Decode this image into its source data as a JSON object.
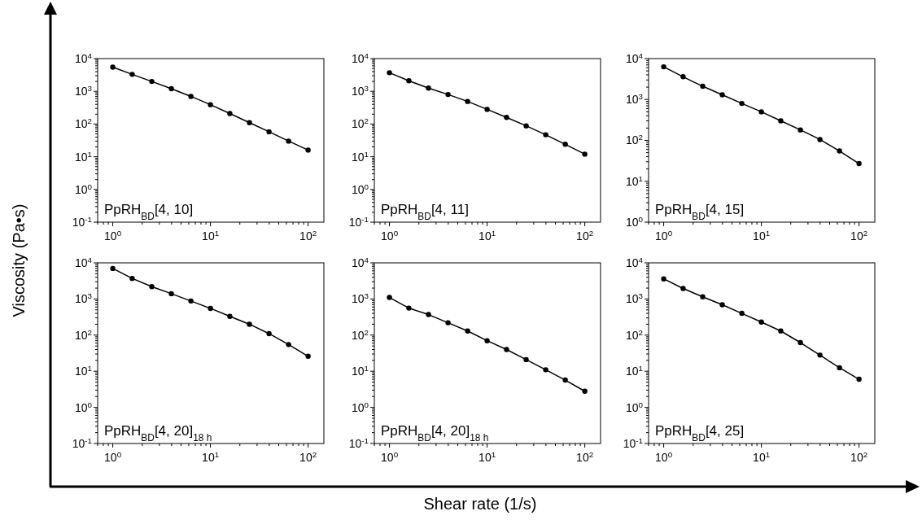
{
  "chart_data": [
    {
      "type": "line",
      "title": "PpRH$_{BD}$[4, 10]",
      "ylabel": "Viscosity (Pa•s)",
      "log": "xy",
      "marker": "circle",
      "x": [
        1,
        1.58,
        2.51,
        3.98,
        6.31,
        10,
        15.8,
        25.1,
        39.8,
        63.1,
        100
      ],
      "xlim": [
        0.7,
        145
      ],
      "ylim": [
        0.1,
        10000
      ],
      "xticks": [
        {
          "value": 1,
          "label": "10$^{0}$"
        },
        {
          "value": 10,
          "label": "10$^{1}$"
        },
        {
          "value": 100,
          "label": "10$^{2}$"
        }
      ],
      "yticks": [
        {
          "value": 0.1,
          "label": "10$^{-1}$"
        },
        {
          "value": 1,
          "label": "10$^{0}$"
        },
        {
          "value": 10,
          "label": "10$^{1}$"
        },
        {
          "value": 100,
          "label": "10$^{2}$"
        },
        {
          "value": 1000,
          "label": "10$^{3}$"
        },
        {
          "value": 10000,
          "label": "10$^{4}$"
        }
      ],
      "series": [
        {
          "color": "#000000",
          "values": [
            5500,
            3300,
            2000,
            1200,
            700,
            390,
            210,
            110,
            58,
            30,
            16
          ]
        }
      ]
    },
    {
      "type": "line",
      "title": "PpRH$_{BD}$[4, 11]",
      "log": "xy",
      "marker": "circle",
      "x": [
        1,
        1.58,
        2.51,
        3.98,
        6.31,
        10,
        15.8,
        25.1,
        39.8,
        63.1,
        100
      ],
      "xlim": [
        0.7,
        145
      ],
      "ylim": [
        0.1,
        10000
      ],
      "xticks": [
        {
          "value": 1,
          "label": "10$^{0}$"
        },
        {
          "value": 10,
          "label": "10$^{1}$"
        },
        {
          "value": 100,
          "label": "10$^{2}$"
        }
      ],
      "yticks": [
        {
          "value": 0.1,
          "label": "10$^{-1}$"
        },
        {
          "value": 1,
          "label": "10$^{0}$"
        },
        {
          "value": 10,
          "label": "10$^{1}$"
        },
        {
          "value": 100,
          "label": "10$^{2}$"
        },
        {
          "value": 1000,
          "label": "10$^{3}$"
        },
        {
          "value": 10000,
          "label": "10$^{4}$"
        }
      ],
      "series": [
        {
          "color": "#000000",
          "values": [
            3700,
            2100,
            1250,
            800,
            490,
            280,
            160,
            88,
            47,
            24,
            12
          ]
        }
      ]
    },
    {
      "type": "line",
      "title": "PpRH$_{BD}$[4, 15]",
      "log": "xy",
      "marker": "circle",
      "x": [
        1,
        1.58,
        2.51,
        3.98,
        6.31,
        10,
        15.8,
        25.1,
        39.8,
        63.1,
        100
      ],
      "xlim": [
        0.7,
        145
      ],
      "ylim": [
        1,
        10000
      ],
      "xticks": [
        {
          "value": 1,
          "label": "10$^{0}$"
        },
        {
          "value": 10,
          "label": "10$^{1}$"
        },
        {
          "value": 100,
          "label": "10$^{2}$"
        }
      ],
      "yticks": [
        {
          "value": 1,
          "label": "10$^{0}$"
        },
        {
          "value": 10,
          "label": "10$^{1}$"
        },
        {
          "value": 100,
          "label": "10$^{2}$"
        },
        {
          "value": 1000,
          "label": "10$^{3}$"
        },
        {
          "value": 10000,
          "label": "10$^{4}$"
        }
      ],
      "series": [
        {
          "color": "#000000",
          "values": [
            6300,
            3600,
            2100,
            1300,
            800,
            500,
            300,
            180,
            105,
            55,
            27
          ]
        }
      ]
    },
    {
      "type": "line",
      "title": "PpRH$_{BD}$[4, 20]$_{18 h}$",
      "log": "xy",
      "marker": "circle",
      "x": [
        1,
        1.58,
        2.51,
        3.98,
        6.31,
        10,
        15.8,
        25.1,
        39.8,
        63.1,
        100
      ],
      "xlim": [
        0.7,
        145
      ],
      "ylim": [
        0.1,
        10000
      ],
      "xticks": [
        {
          "value": 1,
          "label": "10$^{0}$"
        },
        {
          "value": 10,
          "label": "10$^{1}$"
        },
        {
          "value": 100,
          "label": "10$^{2}$"
        }
      ],
      "yticks": [
        {
          "value": 0.1,
          "label": "10$^{-1}$"
        },
        {
          "value": 1,
          "label": "10$^{0}$"
        },
        {
          "value": 10,
          "label": "10$^{1}$"
        },
        {
          "value": 100,
          "label": "10$^{2}$"
        },
        {
          "value": 1000,
          "label": "10$^{3}$"
        },
        {
          "value": 10000,
          "label": "10$^{4}$"
        }
      ],
      "series": [
        {
          "color": "#000000",
          "values": [
            7000,
            3700,
            2200,
            1400,
            880,
            550,
            330,
            200,
            110,
            55,
            26
          ]
        }
      ]
    },
    {
      "type": "line",
      "title": "PpRH$_{BD}$[4, 20]$_{18 h}$",
      "xlabel": "Shear rate (1/s)",
      "log": "xy",
      "marker": "circle",
      "x": [
        1,
        1.58,
        2.51,
        3.98,
        6.31,
        10,
        15.8,
        25.1,
        39.8,
        63.1,
        100
      ],
      "xlim": [
        0.7,
        145
      ],
      "ylim": [
        0.1,
        10000
      ],
      "xticks": [
        {
          "value": 1,
          "label": "10$^{0}$"
        },
        {
          "value": 10,
          "label": "10$^{1}$"
        },
        {
          "value": 100,
          "label": "10$^{2}$"
        }
      ],
      "yticks": [
        {
          "value": 0.1,
          "label": "10$^{-1}$"
        },
        {
          "value": 1,
          "label": "10$^{0}$"
        },
        {
          "value": 10,
          "label": "10$^{1}$"
        },
        {
          "value": 100,
          "label": "10$^{2}$"
        },
        {
          "value": 1000,
          "label": "10$^{3}$"
        },
        {
          "value": 10000,
          "label": "10$^{4}$"
        }
      ],
      "series": [
        {
          "color": "#000000",
          "values": [
            1100,
            560,
            370,
            220,
            130,
            70,
            40,
            21,
            11,
            5.7,
            2.8
          ]
        }
      ]
    },
    {
      "type": "line",
      "title": "PpRH$_{BD}$[4, 25]",
      "log": "xy",
      "marker": "circle",
      "x": [
        1,
        1.58,
        2.51,
        3.98,
        6.31,
        10,
        15.8,
        25.1,
        39.8,
        63.1,
        100
      ],
      "xlim": [
        0.7,
        145
      ],
      "ylim": [
        0.1,
        10000
      ],
      "xticks": [
        {
          "value": 1,
          "label": "10$^{0}$"
        },
        {
          "value": 10,
          "label": "10$^{1}$"
        },
        {
          "value": 100,
          "label": "10$^{2}$"
        }
      ],
      "yticks": [
        {
          "value": 0.1,
          "label": "10$^{-1}$"
        },
        {
          "value": 1,
          "label": "10$^{0}$"
        },
        {
          "value": 10,
          "label": "10$^{1}$"
        },
        {
          "value": 100,
          "label": "10$^{2}$"
        },
        {
          "value": 1000,
          "label": "10$^{3}$"
        },
        {
          "value": 10000,
          "label": "10$^{4}$"
        }
      ],
      "series": [
        {
          "color": "#000000",
          "values": [
            3600,
            1950,
            1150,
            690,
            400,
            230,
            130,
            62,
            28,
            12.5,
            6
          ]
        }
      ]
    }
  ]
}
